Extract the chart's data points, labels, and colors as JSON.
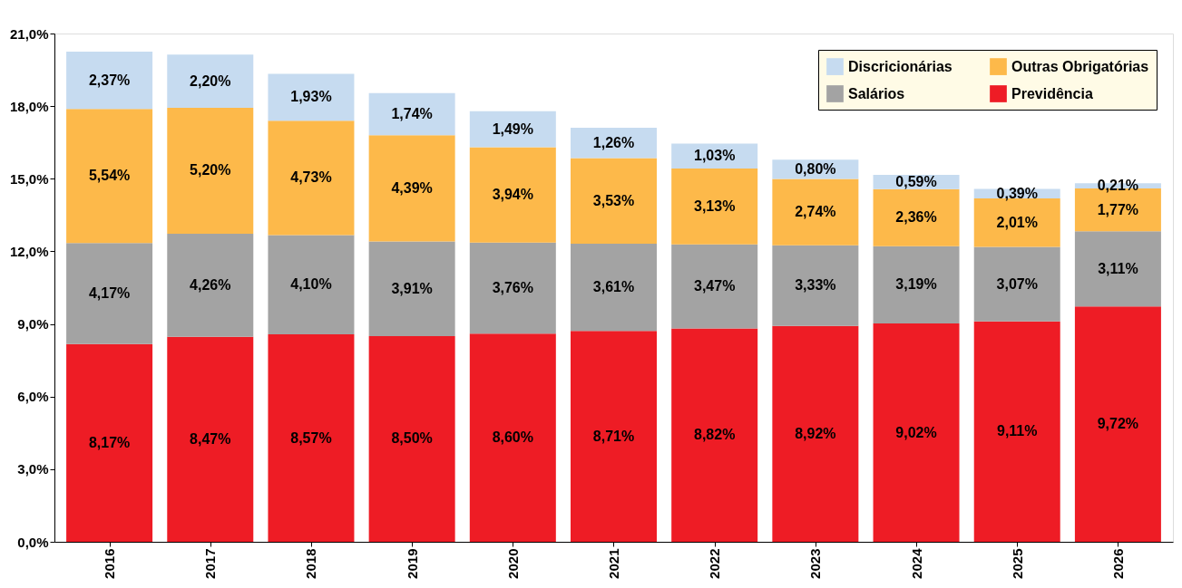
{
  "chart_data": {
    "type": "bar",
    "stacked": true,
    "categories": [
      "2016",
      "2017",
      "2018",
      "2019",
      "2020",
      "2021",
      "2022",
      "2023",
      "2024",
      "2025",
      "2026"
    ],
    "series": [
      {
        "name": "Previdência",
        "color": "#ee1c25",
        "values": [
          8.17,
          8.47,
          8.57,
          8.5,
          8.6,
          8.71,
          8.82,
          8.92,
          9.02,
          9.11,
          9.72
        ],
        "value_labels": [
          "8,17%",
          "8,47%",
          "8,57%",
          "8,50%",
          "8,60%",
          "8,71%",
          "8,82%",
          "8,92%",
          "9,02%",
          "9,11%",
          "9,72%"
        ]
      },
      {
        "name": "Salários",
        "color": "#a3a3a3",
        "values": [
          4.17,
          4.26,
          4.1,
          3.91,
          3.76,
          3.61,
          3.47,
          3.33,
          3.19,
          3.07,
          3.11
        ],
        "value_labels": [
          "4,17%",
          "4,26%",
          "4,10%",
          "3,91%",
          "3,76%",
          "3,61%",
          "3,47%",
          "3,33%",
          "3,19%",
          "3,07%",
          "3,11%"
        ]
      },
      {
        "name": "Outras Obrigatórias",
        "color": "#fdb94a",
        "values": [
          5.54,
          5.2,
          4.73,
          4.39,
          3.94,
          3.53,
          3.13,
          2.74,
          2.36,
          2.01,
          1.77
        ],
        "value_labels": [
          "5,54%",
          "5,20%",
          "4,73%",
          "4,39%",
          "3,94%",
          "3,53%",
          "3,13%",
          "2,74%",
          "2,36%",
          "2,01%",
          "1,77%"
        ]
      },
      {
        "name": "Discricionárias",
        "color": "#c6dbf0",
        "values": [
          2.37,
          2.2,
          1.93,
          1.74,
          1.49,
          1.26,
          1.03,
          0.8,
          0.59,
          0.39,
          0.21
        ],
        "value_labels": [
          "2,37%",
          "2,20%",
          "1,93%",
          "1,74%",
          "1,49%",
          "1,26%",
          "1,03%",
          "0,80%",
          "0,59%",
          "0,39%",
          "0,21%"
        ]
      }
    ],
    "ylim": [
      0,
      21
    ],
    "yticks": [
      {
        "value": 0,
        "label": "0,0%"
      },
      {
        "value": 3,
        "label": "3,0%"
      },
      {
        "value": 6,
        "label": "6,0%"
      },
      {
        "value": 9,
        "label": "9,0%"
      },
      {
        "value": 12,
        "label": "12,0%"
      },
      {
        "value": 15,
        "label": "15,0%"
      },
      {
        "value": 18,
        "label": "18,0%"
      },
      {
        "value": 21,
        "label": "21,0%"
      }
    ],
    "grid": false,
    "legend": "top right"
  }
}
